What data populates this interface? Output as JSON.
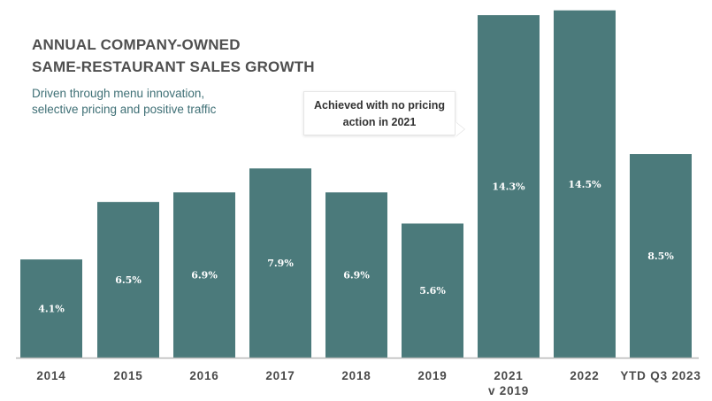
{
  "header": {
    "title_line1": "ANNUAL COMPANY-OWNED",
    "title_line2": "SAME-RESTAURANT SALES GROWTH",
    "subtitle_line1": "Driven through menu innovation,",
    "subtitle_line2": "selective pricing and positive traffic"
  },
  "callout": {
    "line1": "Achieved with no pricing",
    "line2": "action in 2021"
  },
  "colors": {
    "bar": "#4b7a7b",
    "label": "#ffffff",
    "axis": "#b8b8b8"
  },
  "chart_data": {
    "type": "bar",
    "title": "ANNUAL COMPANY-OWNED SAME-RESTAURANT SALES GROWTH",
    "subtitle": "Driven through menu innovation, selective pricing and positive traffic",
    "categories": [
      [
        "2014"
      ],
      [
        "2015"
      ],
      [
        "2016"
      ],
      [
        "2017"
      ],
      [
        "2018"
      ],
      [
        "2019"
      ],
      [
        "2021",
        "v 2019"
      ],
      [
        "2022"
      ],
      [
        "YTD Q3 2023"
      ]
    ],
    "values": [
      4.1,
      6.5,
      6.9,
      7.9,
      6.9,
      5.6,
      14.3,
      14.5,
      8.5
    ],
    "data_labels": [
      "4.1%",
      "6.5%",
      "6.9%",
      "7.9%",
      "6.9%",
      "5.6%",
      "14.3%",
      "14.5%",
      "8.5%"
    ],
    "xlabel": "",
    "ylabel": "",
    "ylim": [
      0,
      14.6
    ],
    "grid": false,
    "annotations": [
      "Achieved with no pricing action in 2021"
    ]
  }
}
